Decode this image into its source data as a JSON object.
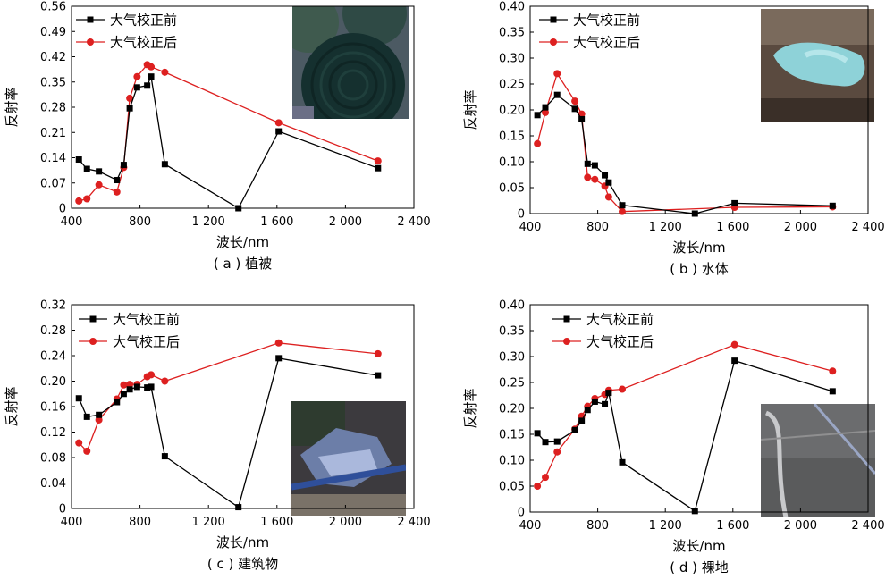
{
  "figure": {
    "x_axis_label": "波长/nm",
    "y_axis_label": "反射率",
    "legend": [
      "大气校正前",
      "大气校正后"
    ],
    "series_colors": {
      "before": "#000000",
      "after": "#dd2020"
    }
  },
  "chart_data": [
    {
      "type": "line",
      "caption": "( a ) 植被",
      "xlabel": "波长/nm",
      "ylabel": "反射率",
      "xlim": [
        400,
        2400
      ],
      "ylim": [
        0,
        0.56
      ],
      "x_ticks": [
        "400",
        "800",
        "1 200",
        "1 600",
        "2 000",
        "2 400"
      ],
      "y_ticks": [
        "0",
        "0.07",
        "0.14",
        "0.21",
        "0.28",
        "0.35",
        "0.42",
        "0.49",
        "0.56"
      ],
      "legend_position": "top-left",
      "inset": "vegetation",
      "series": [
        {
          "name": "大气校正前",
          "color": "#000000",
          "marker": "square",
          "points": [
            [
              443,
              0.135
            ],
            [
              490,
              0.109
            ],
            [
              560,
              0.102
            ],
            [
              665,
              0.078
            ],
            [
              705,
              0.12
            ],
            [
              740,
              0.277
            ],
            [
              783,
              0.335
            ],
            [
              842,
              0.34
            ],
            [
              865,
              0.365
            ],
            [
              945,
              0.122
            ],
            [
              1375,
              0.0
            ],
            [
              1610,
              0.213
            ],
            [
              2190,
              0.111
            ]
          ]
        },
        {
          "name": "大气校正后",
          "color": "#dd2020",
          "marker": "circle",
          "points": [
            [
              443,
              0.02
            ],
            [
              490,
              0.026
            ],
            [
              560,
              0.065
            ],
            [
              665,
              0.045
            ],
            [
              705,
              0.113
            ],
            [
              740,
              0.305
            ],
            [
              783,
              0.365
            ],
            [
              842,
              0.398
            ],
            [
              865,
              0.392
            ],
            [
              945,
              0.377
            ],
            [
              1610,
              0.237
            ],
            [
              2190,
              0.131
            ]
          ]
        }
      ]
    },
    {
      "type": "line",
      "caption": "( b ) 水体",
      "xlabel": "波长/nm",
      "ylabel": "反射率",
      "xlim": [
        400,
        2400
      ],
      "ylim": [
        0,
        0.4
      ],
      "x_ticks": [
        "400",
        "800",
        "1 200",
        "1 600",
        "2 000",
        "2 400"
      ],
      "y_ticks": [
        "0",
        "0.05",
        "0.10",
        "0.15",
        "0.20",
        "0.25",
        "0.30",
        "0.35",
        "0.40"
      ],
      "legend_position": "top-left",
      "inset": "water",
      "series": [
        {
          "name": "大气校正前",
          "color": "#000000",
          "marker": "square",
          "points": [
            [
              443,
              0.19
            ],
            [
              490,
              0.205
            ],
            [
              560,
              0.229
            ],
            [
              665,
              0.202
            ],
            [
              705,
              0.182
            ],
            [
              740,
              0.096
            ],
            [
              783,
              0.093
            ],
            [
              842,
              0.074
            ],
            [
              865,
              0.06
            ],
            [
              945,
              0.016
            ],
            [
              1375,
              0.0
            ],
            [
              1610,
              0.02
            ],
            [
              2190,
              0.015
            ]
          ]
        },
        {
          "name": "大气校正后",
          "color": "#dd2020",
          "marker": "circle",
          "points": [
            [
              443,
              0.135
            ],
            [
              490,
              0.195
            ],
            [
              560,
              0.27
            ],
            [
              665,
              0.217
            ],
            [
              705,
              0.192
            ],
            [
              740,
              0.07
            ],
            [
              783,
              0.066
            ],
            [
              842,
              0.053
            ],
            [
              865,
              0.032
            ],
            [
              945,
              0.004
            ],
            [
              1610,
              0.012
            ],
            [
              2190,
              0.013
            ]
          ]
        }
      ]
    },
    {
      "type": "line",
      "caption": "( c ) 建筑物",
      "xlabel": "波长/nm",
      "ylabel": "反射率",
      "xlim": [
        400,
        2400
      ],
      "ylim": [
        0,
        0.32
      ],
      "x_ticks": [
        "400",
        "800",
        "1 200",
        "1 600",
        "2 000",
        "2 400"
      ],
      "y_ticks": [
        "0",
        "0.04",
        "0.08",
        "0.12",
        "0.16",
        "0.20",
        "0.24",
        "0.28",
        "0.32"
      ],
      "legend_position": "top-left",
      "inset": "buildings",
      "series": [
        {
          "name": "大气校正前",
          "color": "#000000",
          "marker": "square",
          "points": [
            [
              443,
              0.173
            ],
            [
              490,
              0.144
            ],
            [
              560,
              0.147
            ],
            [
              665,
              0.167
            ],
            [
              705,
              0.18
            ],
            [
              740,
              0.187
            ],
            [
              783,
              0.191
            ],
            [
              842,
              0.19
            ],
            [
              865,
              0.191
            ],
            [
              945,
              0.082
            ],
            [
              1375,
              0.002
            ],
            [
              1610,
              0.236
            ],
            [
              2190,
              0.209
            ]
          ]
        },
        {
          "name": "大气校正后",
          "color": "#dd2020",
          "marker": "circle",
          "points": [
            [
              443,
              0.103
            ],
            [
              490,
              0.09
            ],
            [
              560,
              0.139
            ],
            [
              665,
              0.172
            ],
            [
              705,
              0.194
            ],
            [
              740,
              0.195
            ],
            [
              783,
              0.195
            ],
            [
              842,
              0.207
            ],
            [
              865,
              0.21
            ],
            [
              945,
              0.2
            ],
            [
              1610,
              0.26
            ],
            [
              2190,
              0.243
            ]
          ]
        }
      ]
    },
    {
      "type": "line",
      "caption": "( d ) 裸地",
      "xlabel": "波长/nm",
      "ylabel": "反射率",
      "xlim": [
        400,
        2400
      ],
      "ylim": [
        0,
        0.4
      ],
      "x_ticks": [
        "400",
        "800",
        "1 200",
        "1 600",
        "2 000",
        "2 400"
      ],
      "y_ticks": [
        "0",
        "0.05",
        "0.10",
        "0.15",
        "0.20",
        "0.25",
        "0.30",
        "0.35",
        "0.40"
      ],
      "legend_position": "top-left",
      "inset": "bare-land",
      "series": [
        {
          "name": "大气校正前",
          "color": "#000000",
          "marker": "square",
          "points": [
            [
              443,
              0.152
            ],
            [
              490,
              0.135
            ],
            [
              560,
              0.136
            ],
            [
              665,
              0.158
            ],
            [
              705,
              0.176
            ],
            [
              740,
              0.197
            ],
            [
              783,
              0.213
            ],
            [
              842,
              0.208
            ],
            [
              865,
              0.23
            ],
            [
              945,
              0.096
            ],
            [
              1375,
              0.002
            ],
            [
              1610,
              0.292
            ],
            [
              2190,
              0.233
            ]
          ]
        },
        {
          "name": "大气校正后",
          "color": "#dd2020",
          "marker": "circle",
          "points": [
            [
              443,
              0.05
            ],
            [
              490,
              0.067
            ],
            [
              560,
              0.116
            ],
            [
              665,
              0.16
            ],
            [
              705,
              0.185
            ],
            [
              740,
              0.204
            ],
            [
              783,
              0.219
            ],
            [
              842,
              0.227
            ],
            [
              865,
              0.235
            ],
            [
              945,
              0.237
            ],
            [
              1610,
              0.323
            ],
            [
              2190,
              0.272
            ]
          ]
        }
      ]
    }
  ]
}
